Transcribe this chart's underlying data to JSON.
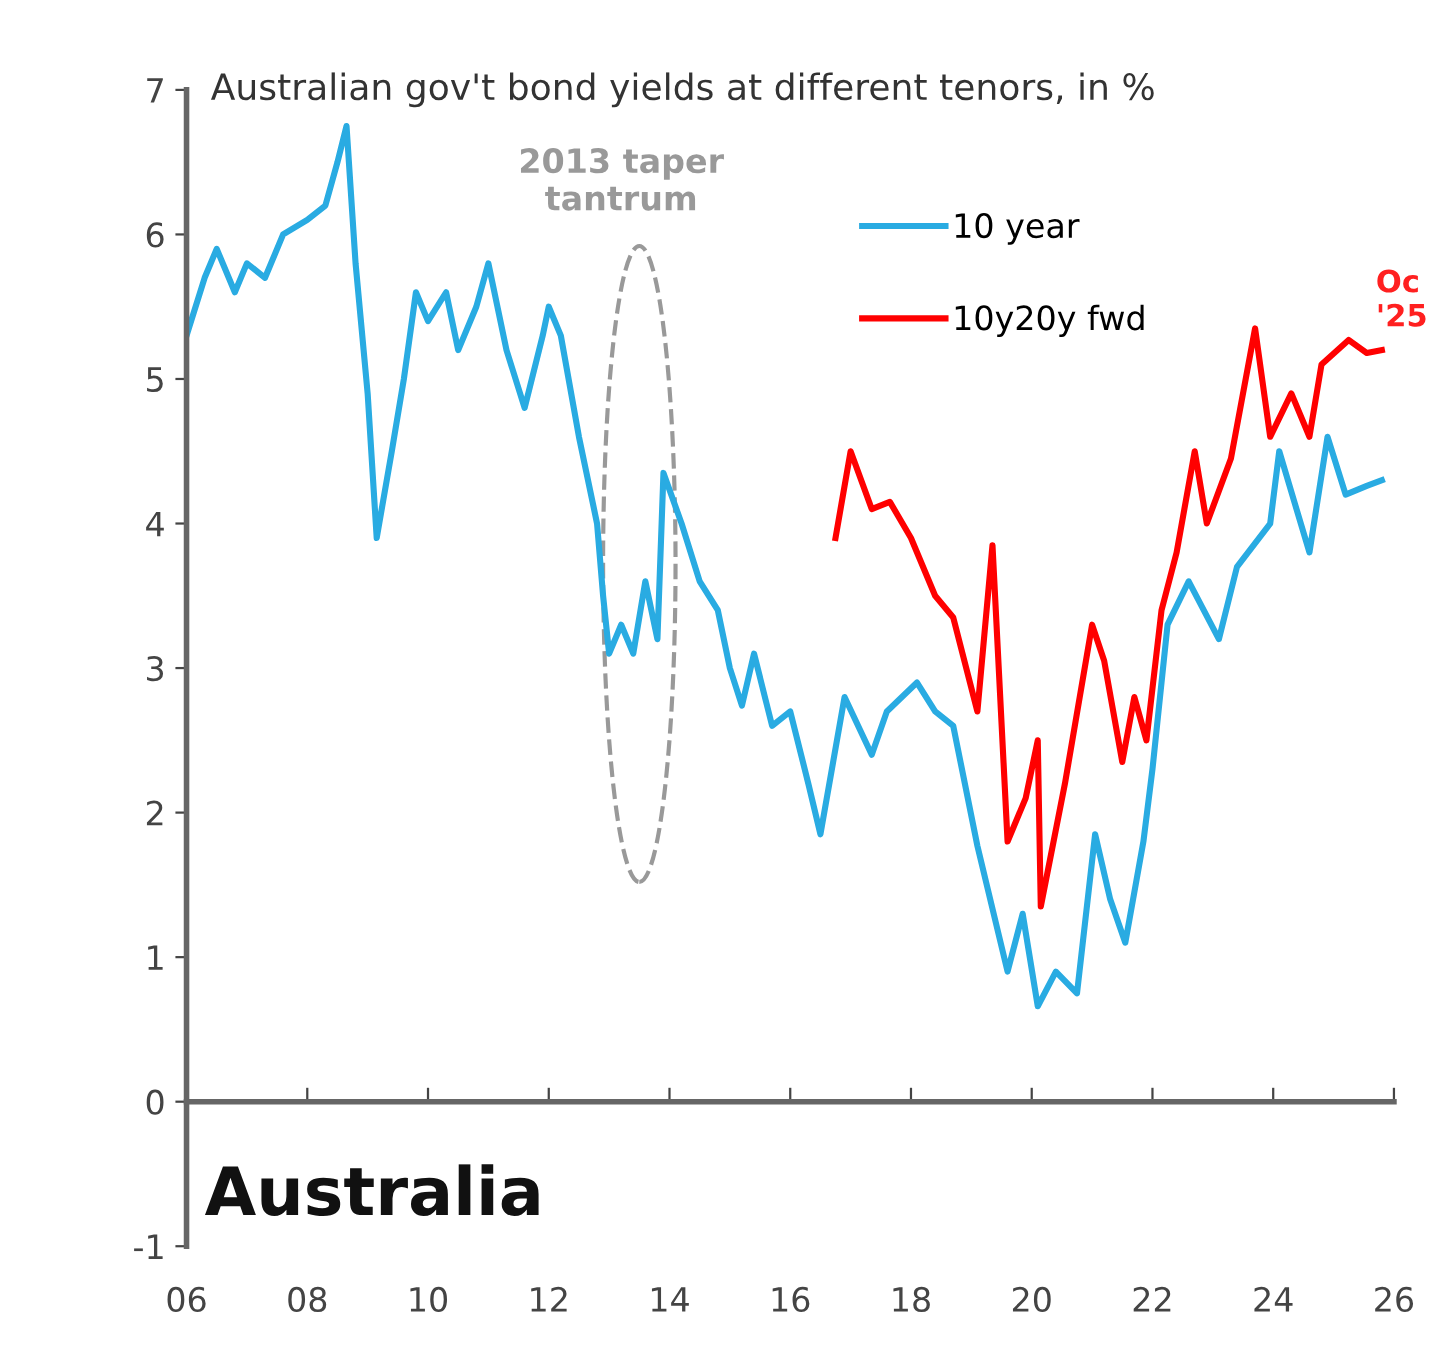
{
  "chart_data": {
    "type": "line",
    "title": "Australian gov't bond yields at different tenors, in %",
    "xlim": [
      2006,
      2026
    ],
    "ylim": [
      -1,
      7
    ],
    "xticks": [
      {
        "value": 2006,
        "label": "06"
      },
      {
        "value": 2008,
        "label": "08"
      },
      {
        "value": 2010,
        "label": "10"
      },
      {
        "value": 2012,
        "label": "12"
      },
      {
        "value": 2014,
        "label": "14"
      },
      {
        "value": 2016,
        "label": "16"
      },
      {
        "value": 2018,
        "label": "18"
      },
      {
        "value": 2020,
        "label": "20"
      },
      {
        "value": 2022,
        "label": "22"
      },
      {
        "value": 2024,
        "label": "24"
      },
      {
        "value": 2026,
        "label": "26"
      }
    ],
    "yticks": [
      -1,
      0,
      1,
      2,
      3,
      4,
      5,
      6,
      7
    ],
    "legend": "top right",
    "marker": "none",
    "line_style": "solid",
    "series": [
      {
        "name": "10 year",
        "color": "#29abe2",
        "x": [
          2006.0,
          2006.3,
          2006.5,
          2006.8,
          2007.0,
          2007.3,
          2007.6,
          2008.0,
          2008.3,
          2008.5,
          2008.65,
          2008.8,
          2009.0,
          2009.15,
          2009.4,
          2009.6,
          2009.8,
          2010.0,
          2010.3,
          2010.5,
          2010.8,
          2011.0,
          2011.3,
          2011.6,
          2011.9,
          2012.0,
          2012.2,
          2012.5,
          2012.8,
          2012.9,
          2013.0,
          2013.2,
          2013.4,
          2013.6,
          2013.8,
          2013.9,
          2014.2,
          2014.5,
          2014.8,
          2015.0,
          2015.2,
          2015.4,
          2015.7,
          2016.0,
          2016.3,
          2016.5,
          2016.9,
          2017.35,
          2017.6,
          2018.1,
          2018.4,
          2018.7,
          2019.1,
          2019.6,
          2019.85,
          2020.1,
          2020.4,
          2020.75,
          2021.05,
          2021.3,
          2021.55,
          2021.85,
          2022.0,
          2022.25,
          2022.6,
          2023.1,
          2023.4,
          2023.95,
          2024.1,
          2024.6,
          2024.9,
          2025.2,
          2025.55,
          2025.8
        ],
        "values": [
          5.3,
          5.7,
          5.9,
          5.6,
          5.8,
          5.7,
          6.0,
          6.1,
          6.2,
          6.5,
          6.75,
          5.8,
          4.9,
          3.9,
          4.5,
          5.0,
          5.6,
          5.4,
          5.6,
          5.2,
          5.5,
          5.8,
          5.2,
          4.8,
          5.3,
          5.5,
          5.3,
          4.6,
          4.0,
          3.5,
          3.1,
          3.3,
          3.1,
          3.6,
          3.2,
          4.35,
          4.0,
          3.6,
          3.4,
          3.0,
          2.74,
          3.1,
          2.6,
          2.7,
          2.2,
          1.85,
          2.8,
          2.4,
          2.7,
          2.9,
          2.7,
          2.6,
          1.77,
          0.9,
          1.3,
          0.66,
          0.9,
          0.75,
          1.85,
          1.4,
          1.1,
          1.8,
          2.3,
          3.3,
          3.6,
          3.2,
          3.7,
          4.0,
          4.5,
          3.8,
          4.6,
          4.2,
          4.26,
          4.3
        ]
      },
      {
        "name": "10y20y fwd",
        "color": "#ff0000",
        "x": [
          2016.75,
          2017.0,
          2017.35,
          2017.65,
          2018.0,
          2018.4,
          2018.7,
          2019.1,
          2019.35,
          2019.6,
          2019.9,
          2020.1,
          2020.15,
          2020.55,
          2021.0,
          2021.2,
          2021.5,
          2021.7,
          2021.9,
          2022.15,
          2022.4,
          2022.7,
          2022.9,
          2023.3,
          2023.7,
          2023.95,
          2024.3,
          2024.6,
          2024.8,
          2025.25,
          2025.55,
          2025.8
        ],
        "values": [
          3.9,
          4.5,
          4.1,
          4.15,
          3.9,
          3.5,
          3.35,
          2.7,
          3.85,
          1.8,
          2.1,
          2.5,
          1.35,
          2.2,
          3.3,
          3.05,
          2.35,
          2.8,
          2.5,
          3.4,
          3.8,
          4.5,
          4.0,
          4.45,
          5.35,
          4.6,
          4.9,
          4.6,
          5.1,
          5.27,
          5.18,
          5.2
        ]
      }
    ],
    "annotations": [
      "2013 taper\ntantrum",
      "Australia",
      "Oc\n'25"
    ]
  }
}
